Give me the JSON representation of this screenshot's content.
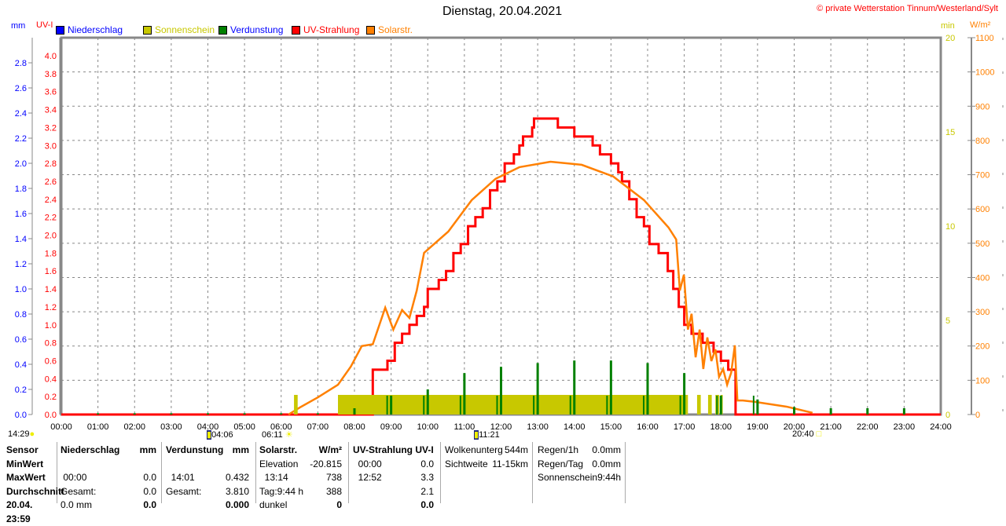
{
  "header": {
    "title": "Dienstag, 20.04.2021",
    "credit": "© private Wetterstation Tinnum/Westerland/Sylt"
  },
  "axes": {
    "left1_unit": "mm",
    "left2_unit": "UV-I",
    "right1_unit": "min",
    "right2_unit": "W/m²"
  },
  "legend": [
    {
      "label": "Niederschlag",
      "color": "#0000ff"
    },
    {
      "label": "Sonnenschein",
      "color": "#c8c800"
    },
    {
      "label": "Verdunstung",
      "color": "#008000"
    },
    {
      "label": "UV-Strahlung",
      "color": "#ff0000"
    },
    {
      "label": "Solarstr.",
      "color": "#ff8000"
    }
  ],
  "sun_events": {
    "moonset": "14:29",
    "moonrise_icon_time": "04:06",
    "sunrise": "06:11",
    "noon": "11:21",
    "sunset": "20:40"
  },
  "chart_data": {
    "type": "line",
    "title": "Dienstag, 20.04.2021",
    "x_ticks": [
      "00:00",
      "01:00",
      "02:00",
      "03:00",
      "04:00",
      "05:00",
      "06:00",
      "07:00",
      "08:00",
      "09:00",
      "10:00",
      "11:00",
      "12:00",
      "13:00",
      "14:00",
      "15:00",
      "16:00",
      "17:00",
      "18:00",
      "19:00",
      "20:00",
      "21:00",
      "22:00",
      "23:00",
      "24:00"
    ],
    "xlim": [
      0,
      24
    ],
    "mm_axis": {
      "range": [
        0,
        2.8
      ],
      "ticks": [
        "0.0",
        "0.2",
        "0.4",
        "0.6",
        "0.8",
        "1.0",
        "1.2",
        "1.4",
        "1.6",
        "1.8",
        "2.0",
        "2.2",
        "2.4",
        "2.6",
        "2.8"
      ]
    },
    "uv_axis": {
      "range": [
        0,
        4.0
      ],
      "ticks": [
        "0.0",
        "0.2",
        "0.4",
        "0.6",
        "0.8",
        "1.0",
        "1.2",
        "1.4",
        "1.6",
        "1.8",
        "2.0",
        "2.2",
        "2.4",
        "2.6",
        "2.8",
        "3.0",
        "3.2",
        "3.4",
        "3.6",
        "3.8",
        "4.0"
      ]
    },
    "min_axis": {
      "range": [
        0,
        20
      ],
      "ticks": [
        "0",
        "5",
        "10",
        "15",
        "20"
      ]
    },
    "solar_axis": {
      "range": [
        0,
        1100
      ],
      "ticks": [
        "0",
        "100",
        "200",
        "300",
        "400",
        "500",
        "600",
        "700",
        "800",
        "900",
        "1000",
        "1100"
      ]
    },
    "series": [
      {
        "name": "UV-Strahlung",
        "axis": "uv",
        "color": "#ff0000",
        "step": true,
        "x": [
          0,
          8.5,
          8.5,
          8.9,
          9.1,
          9.3,
          9.5,
          9.7,
          9.9,
          10.0,
          10.3,
          10.5,
          10.7,
          10.9,
          11.1,
          11.3,
          11.5,
          11.7,
          11.9,
          12.1,
          12.35,
          12.5,
          12.6,
          12.85,
          12.9,
          13.5,
          13.55,
          14.0,
          14.5,
          14.7,
          15.0,
          15.2,
          15.3,
          15.5,
          15.7,
          15.9,
          16.05,
          16.3,
          16.55,
          16.7,
          16.85,
          17.0,
          17.2,
          17.5,
          17.8,
          18.0,
          18.2,
          18.35,
          18.4,
          24
        ],
        "y": [
          0,
          0,
          0.5,
          0.6,
          0.8,
          0.9,
          1.0,
          1.1,
          1.2,
          1.4,
          1.5,
          1.6,
          1.8,
          1.9,
          2.1,
          2.2,
          2.3,
          2.5,
          2.6,
          2.8,
          2.9,
          3.0,
          3.1,
          3.2,
          3.3,
          3.3,
          3.2,
          3.1,
          3.0,
          2.9,
          2.8,
          2.7,
          2.6,
          2.4,
          2.2,
          2.1,
          1.9,
          1.8,
          1.6,
          1.4,
          1.2,
          1.0,
          0.9,
          0.8,
          0.7,
          0.6,
          0.5,
          0.5,
          0,
          0
        ]
      },
      {
        "name": "Solarstr.",
        "axis": "solar",
        "color": "#ff8000",
        "x": [
          6.2,
          6.5,
          7.0,
          7.55,
          7.9,
          8.2,
          8.5,
          8.84,
          9.06,
          9.3,
          9.5,
          9.7,
          9.9,
          10.56,
          11.2,
          11.85,
          12.5,
          13.35,
          14.2,
          15.06,
          15.9,
          16.57,
          16.78,
          16.88,
          16.99,
          17.1,
          17.2,
          17.31,
          17.42,
          17.52,
          17.63,
          17.74,
          17.85,
          17.95,
          18.06,
          18.17,
          18.28,
          18.38,
          18.45,
          18.6,
          18.93,
          19.79,
          20.5
        ],
        "y": [
          0,
          20,
          50,
          87,
          140,
          200,
          205,
          312,
          248,
          305,
          282,
          362,
          472,
          534,
          626,
          688,
          722,
          738,
          729,
          695,
          626,
          546,
          511,
          362,
          408,
          248,
          294,
          167,
          248,
          133,
          225,
          156,
          190,
          110,
          133,
          87,
          122,
          202,
          41,
          41,
          37,
          23,
          5
        ]
      },
      {
        "name": "Sonnenschein",
        "axis": "min",
        "color": "#c8c800",
        "bars": [
          [
            6.35,
            6.45,
            1
          ],
          [
            7.55,
            17.1,
            1
          ],
          [
            17.35,
            17.45,
            1
          ],
          [
            17.65,
            17.75,
            1
          ],
          [
            17.85,
            17.95,
            1
          ],
          [
            18.0,
            18.05,
            1
          ]
        ]
      },
      {
        "name": "Verdunstung",
        "axis": "mm",
        "color": "#008000",
        "x": [
          1,
          2,
          3,
          4,
          5,
          6,
          7,
          8,
          9,
          10,
          11,
          12,
          13,
          14,
          15,
          16,
          17,
          18,
          19,
          20,
          21,
          22,
          23
        ],
        "y": [
          0.01,
          0.01,
          0.01,
          0.01,
          0.01,
          0.01,
          0.01,
          0.05,
          0.15,
          0.2,
          0.33,
          0.38,
          0.41,
          0.43,
          0.43,
          0.41,
          0.33,
          0.15,
          0.12,
          0.06,
          0.05,
          0.05,
          0.05
        ]
      }
    ]
  },
  "table": {
    "sensor": {
      "header": "Sensor",
      "rows": [
        "MinWert",
        "MaxWert",
        "Durchschnitt",
        "20.04. 23:59"
      ]
    },
    "niederschlag": {
      "header": "Niederschlag",
      "unit": "mm",
      "max_time": "00:00",
      "max_val": "0.0",
      "sum_label": "Gesamt:",
      "sum_val": "0.0",
      "last_label": "0.0 mm",
      "last_val": "0.0"
    },
    "verdunstung": {
      "header": "Verdunstung",
      "unit": "mm",
      "max_time": "14:01",
      "max_val": "0.432",
      "sum_label": "Gesamt:",
      "sum_val": "3.810",
      "last_val": "0.000"
    },
    "solar": {
      "header": "Solarstr.",
      "unit": "W/m²",
      "elev_label": "Elevation",
      "elev_val": "-20.815",
      "max_time": "13:14",
      "max_val": "738",
      "day_label": "Tag:9:44 h",
      "avg_val": "388",
      "dark_label": "dunkel",
      "last_val": "0"
    },
    "uv": {
      "header": "UV-Strahlung UV-I",
      "min_time": "00:00",
      "min_val": "0.0",
      "max_time": "12:52",
      "max_val": "3.3",
      "avg_val": "2.1",
      "last_val": "0.0"
    },
    "clouds": {
      "base_label": "Wolkenunterg",
      "base_val": "544m",
      "vis_label": "Sichtweite",
      "vis_val": "11-15km"
    },
    "rain": {
      "h_label": "Regen/1h",
      "h_val": "0.0mm",
      "day_label": "Regen/Tag",
      "day_val": "0.0mm",
      "sun_label": "Sonnenschein",
      "sun_val": "9:44h"
    }
  }
}
